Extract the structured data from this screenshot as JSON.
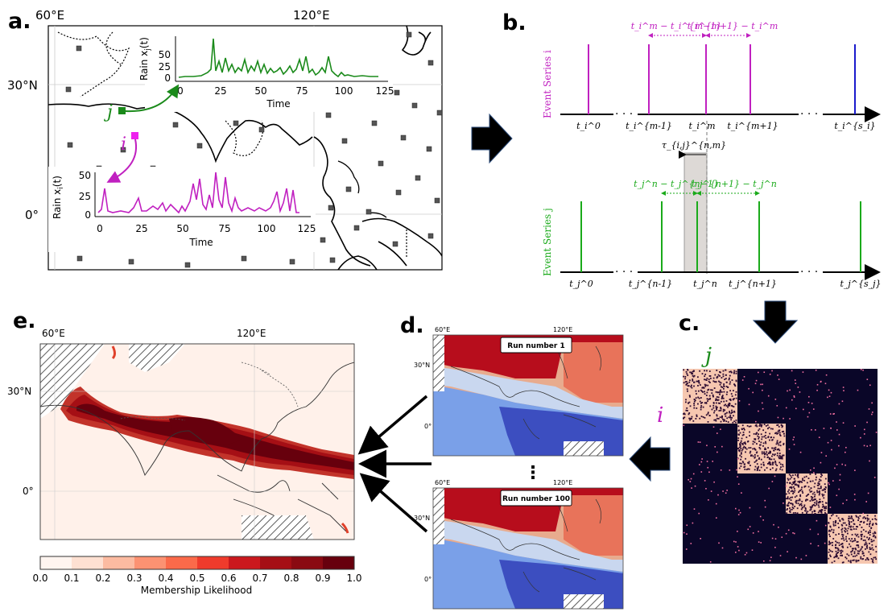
{
  "panels": {
    "a": {
      "letter": "a.",
      "lon_labels": [
        "60°E",
        "120°E"
      ],
      "lat_labels": [
        "30°N",
        "0°"
      ],
      "node_j": "j",
      "node_i": "i",
      "inset_j": {
        "ylabel": "Rain x_j(t)",
        "ylabel_main": "Rain x",
        "ylabel_sub": "j",
        "ylabel_tail": "(t)",
        "xlabel": "Time",
        "xticks": [
          "0",
          "25",
          "50",
          "75",
          "100",
          "125"
        ],
        "yticks": [
          "0",
          "25",
          "50"
        ],
        "color": "#1a8a1a"
      },
      "inset_i": {
        "ylabel_main": "Rain x",
        "ylabel_sub": "i",
        "ylabel_tail": "(t)",
        "xlabel": "Time",
        "xticks": [
          "0",
          "25",
          "50",
          "75",
          "100",
          "125"
        ],
        "yticks": [
          "0",
          "25",
          "50"
        ],
        "color": "#c020c0"
      }
    },
    "b": {
      "letter": "b.",
      "series_i_label": "Event Series i",
      "series_j_label": "Event Series j",
      "i_ticks": [
        "t_i^0",
        "t_i^{m-1}",
        "t_i^m",
        "t_i^{m+1}",
        "t_i^{s_i}"
      ],
      "j_ticks": [
        "t_j^0",
        "t_j^{n-1}",
        "t_j^n",
        "t_j^{n+1}",
        "t_j^{s_j}"
      ],
      "i_gap_left": "t_i^m − t_i^{m−1}",
      "i_gap_right": "t_i^{m+1} − t_i^m",
      "j_gap_left": "t_j^n − t_j^{n−1}",
      "j_gap_right": "t_j^{n+1} − t_j^n",
      "tau_label": "τ_{i,j}^{n,m}",
      "color_i": "#c020c0",
      "color_i_last": "#1a1acc",
      "color_j": "#1aaa1a"
    },
    "c": {
      "letter": "c.",
      "label_j": "j",
      "label_i": "i"
    },
    "d": {
      "letter": "d.",
      "run_top": "Run number 1",
      "run_bottom": "Run number 100",
      "lon_labels": [
        "60°E",
        "120°E"
      ],
      "lat_labels": [
        "30°N",
        "0°"
      ],
      "ellipsis": "⋮"
    },
    "e": {
      "letter": "e.",
      "lon_labels": [
        "60°E",
        "120°E"
      ],
      "lat_labels": [
        "30°N",
        "0°"
      ],
      "colorbar_ticks": [
        "0.0",
        "0.1",
        "0.2",
        "0.3",
        "0.4",
        "0.5",
        "0.6",
        "0.7",
        "0.8",
        "0.9",
        "1.0"
      ],
      "colorbar_label": "Membership Likelihood",
      "colorbar_colors": [
        "#fff5f0",
        "#fee0d2",
        "#fcbba1",
        "#fc9272",
        "#fb6a4a",
        "#ef3b2c",
        "#cb181d",
        "#a50f15",
        "#8a0a12",
        "#67000d"
      ]
    }
  }
}
